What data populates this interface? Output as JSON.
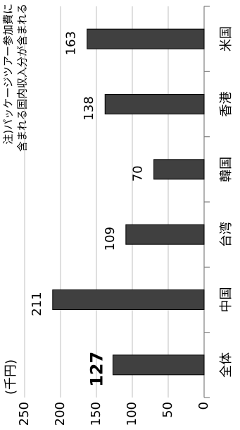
{
  "chart_data": {
    "type": "bar",
    "unit_label": "(千円)",
    "note": [
      "注)パッケージツアー参加費に",
      "含まれる国内収入分が含まれる"
    ],
    "categories": [
      "全体",
      "中国",
      "台湾",
      "韓国",
      "香港",
      "米国"
    ],
    "values": [
      127,
      211,
      109,
      70,
      138,
      163
    ],
    "color": "#404040",
    "ylim": [
      0,
      250
    ],
    "yticks": [
      0,
      50,
      100,
      150,
      200,
      250
    ],
    "grid": true
  }
}
